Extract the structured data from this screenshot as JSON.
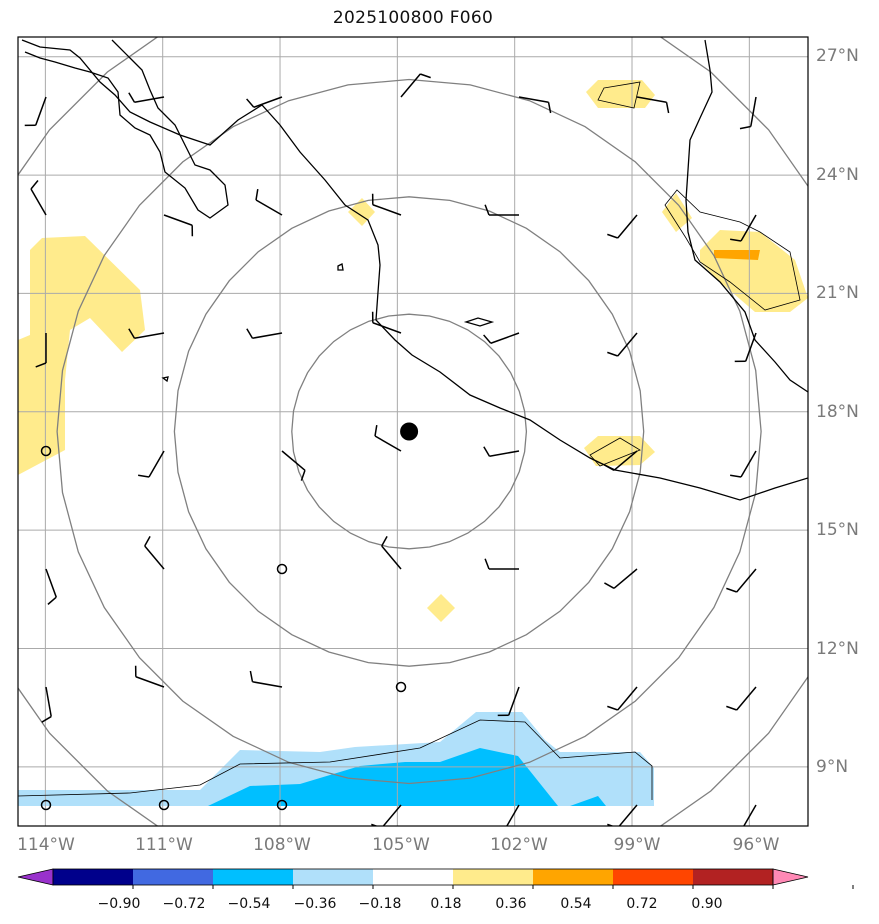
{
  "title": "2025100800 F060",
  "map": {
    "extent": {
      "lon_min": -114.7,
      "lon_max": -94.5,
      "lat_min": 7.5,
      "lat_max": 27.5
    },
    "storm_center": {
      "lon": -104.7,
      "lat": 17.5
    },
    "range_ring_radii_deg": [
      3,
      6,
      9,
      12
    ],
    "lon_gridlines": [
      -114,
      -111,
      -108,
      -105,
      -102,
      -99,
      -96
    ],
    "lat_gridlines": [
      9,
      12,
      15,
      18,
      21,
      24,
      27
    ],
    "lon_labels": [
      "114°W",
      "111°W",
      "108°W",
      "105°W",
      "102°W",
      "99°W",
      "96°W"
    ],
    "lat_labels": [
      "9°N",
      "12°N",
      "15°N",
      "18°N",
      "21°N",
      "24°N",
      "27°N"
    ],
    "colors": {
      "grid": "#aaaaaa",
      "ring": "#808080",
      "coast": "#000000",
      "barb": "#000000"
    }
  },
  "colorbar": {
    "levels": [
      "−0.90",
      "−0.72",
      "−0.54",
      "−0.36",
      "−0.18",
      "0.18",
      "0.36",
      "0.54",
      "0.72",
      "0.90"
    ],
    "colors": [
      "#9932cc",
      "#00008b",
      "#4169e1",
      "#00bfff",
      "#b0e0fa",
      "#ffffff",
      "#ffeb8c",
      "#ffa500",
      "#ff4500",
      "#b22222",
      "#ff89b5"
    ]
  }
}
